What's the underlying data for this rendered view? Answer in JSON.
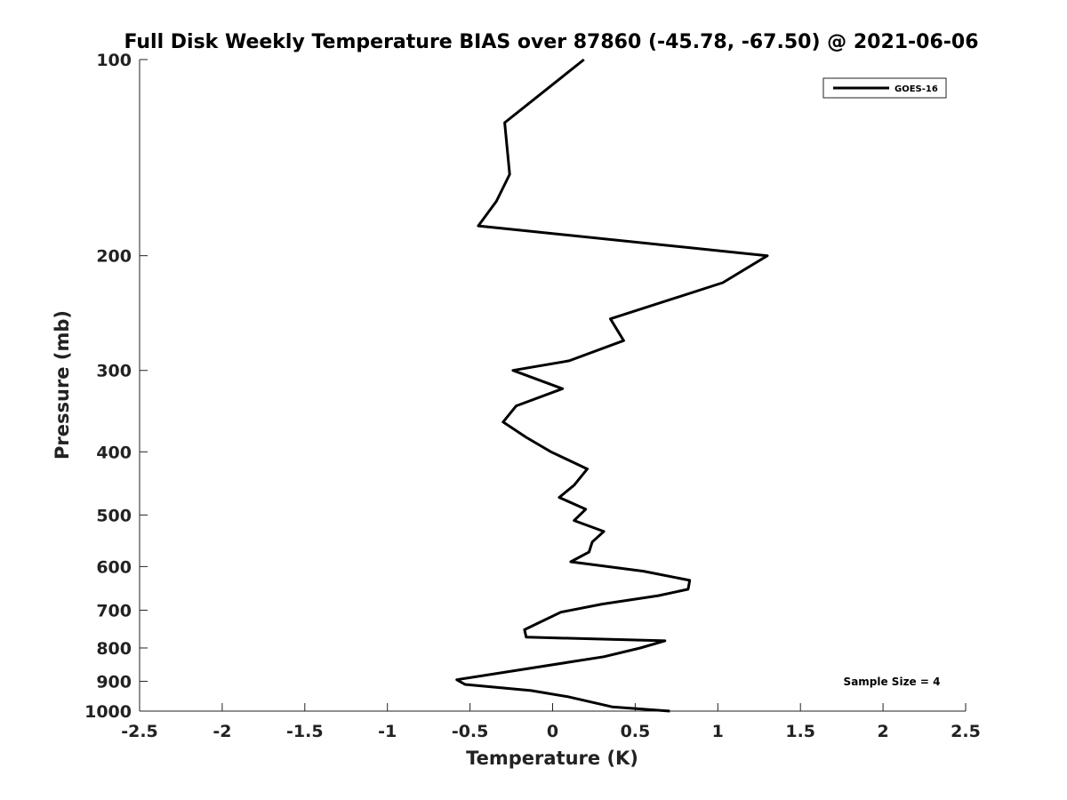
{
  "chart_data": {
    "type": "line",
    "title": "Full Disk Weekly Temperature BIAS over 87860 (-45.78, -67.50) @ 2021-06-06",
    "xlabel": "Temperature (K)",
    "ylabel": "Pressure (mb)",
    "xlim": [
      -2.5,
      2.5
    ],
    "ylim": [
      1000,
      100
    ],
    "y_scale": "log",
    "y_reversed": true,
    "x_ticks": [
      "-2.5",
      "-2",
      "-1.5",
      "-1",
      "-0.5",
      "0",
      "0.5",
      "1",
      "1.5",
      "2",
      "2.5"
    ],
    "x_tick_values": [
      -2.5,
      -2,
      -1.5,
      -1,
      -0.5,
      0,
      0.5,
      1,
      1.5,
      2,
      2.5
    ],
    "y_ticks": [
      "100",
      "200",
      "300",
      "400",
      "500",
      "600",
      "700",
      "800",
      "900",
      "1000"
    ],
    "y_tick_values": [
      100,
      200,
      300,
      400,
      500,
      600,
      700,
      800,
      900,
      1000
    ],
    "grid": false,
    "legend_position": "top-right",
    "annotation": "Sample Size = 4",
    "series": [
      {
        "name": "GOES-16",
        "color": "#000000",
        "points": [
          {
            "x": 0.19,
            "p": 100
          },
          {
            "x": -0.29,
            "p": 125
          },
          {
            "x": -0.26,
            "p": 150
          },
          {
            "x": -0.34,
            "p": 165
          },
          {
            "x": -0.45,
            "p": 180
          },
          {
            "x": 1.3,
            "p": 200
          },
          {
            "x": 1.03,
            "p": 220
          },
          {
            "x": 0.35,
            "p": 250
          },
          {
            "x": 0.43,
            "p": 270
          },
          {
            "x": 0.1,
            "p": 290
          },
          {
            "x": -0.24,
            "p": 300
          },
          {
            "x": 0.06,
            "p": 320
          },
          {
            "x": -0.22,
            "p": 340
          },
          {
            "x": -0.3,
            "p": 360
          },
          {
            "x": -0.16,
            "p": 380
          },
          {
            "x": -0.01,
            "p": 400
          },
          {
            "x": 0.21,
            "p": 425
          },
          {
            "x": 0.13,
            "p": 450
          },
          {
            "x": 0.04,
            "p": 470
          },
          {
            "x": 0.2,
            "p": 490
          },
          {
            "x": 0.13,
            "p": 510
          },
          {
            "x": 0.31,
            "p": 530
          },
          {
            "x": 0.24,
            "p": 550
          },
          {
            "x": 0.22,
            "p": 570
          },
          {
            "x": 0.11,
            "p": 590
          },
          {
            "x": 0.55,
            "p": 610
          },
          {
            "x": 0.83,
            "p": 630
          },
          {
            "x": 0.82,
            "p": 650
          },
          {
            "x": 0.64,
            "p": 665
          },
          {
            "x": 0.3,
            "p": 685
          },
          {
            "x": 0.05,
            "p": 705
          },
          {
            "x": -0.05,
            "p": 725
          },
          {
            "x": -0.17,
            "p": 750
          },
          {
            "x": -0.16,
            "p": 770
          },
          {
            "x": 0.68,
            "p": 780
          },
          {
            "x": 0.53,
            "p": 800
          },
          {
            "x": 0.31,
            "p": 825
          },
          {
            "x": -0.58,
            "p": 895
          },
          {
            "x": -0.53,
            "p": 910
          },
          {
            "x": -0.13,
            "p": 930
          },
          {
            "x": 0.09,
            "p": 950
          },
          {
            "x": 0.36,
            "p": 985
          },
          {
            "x": 0.71,
            "p": 1000
          }
        ]
      }
    ]
  }
}
